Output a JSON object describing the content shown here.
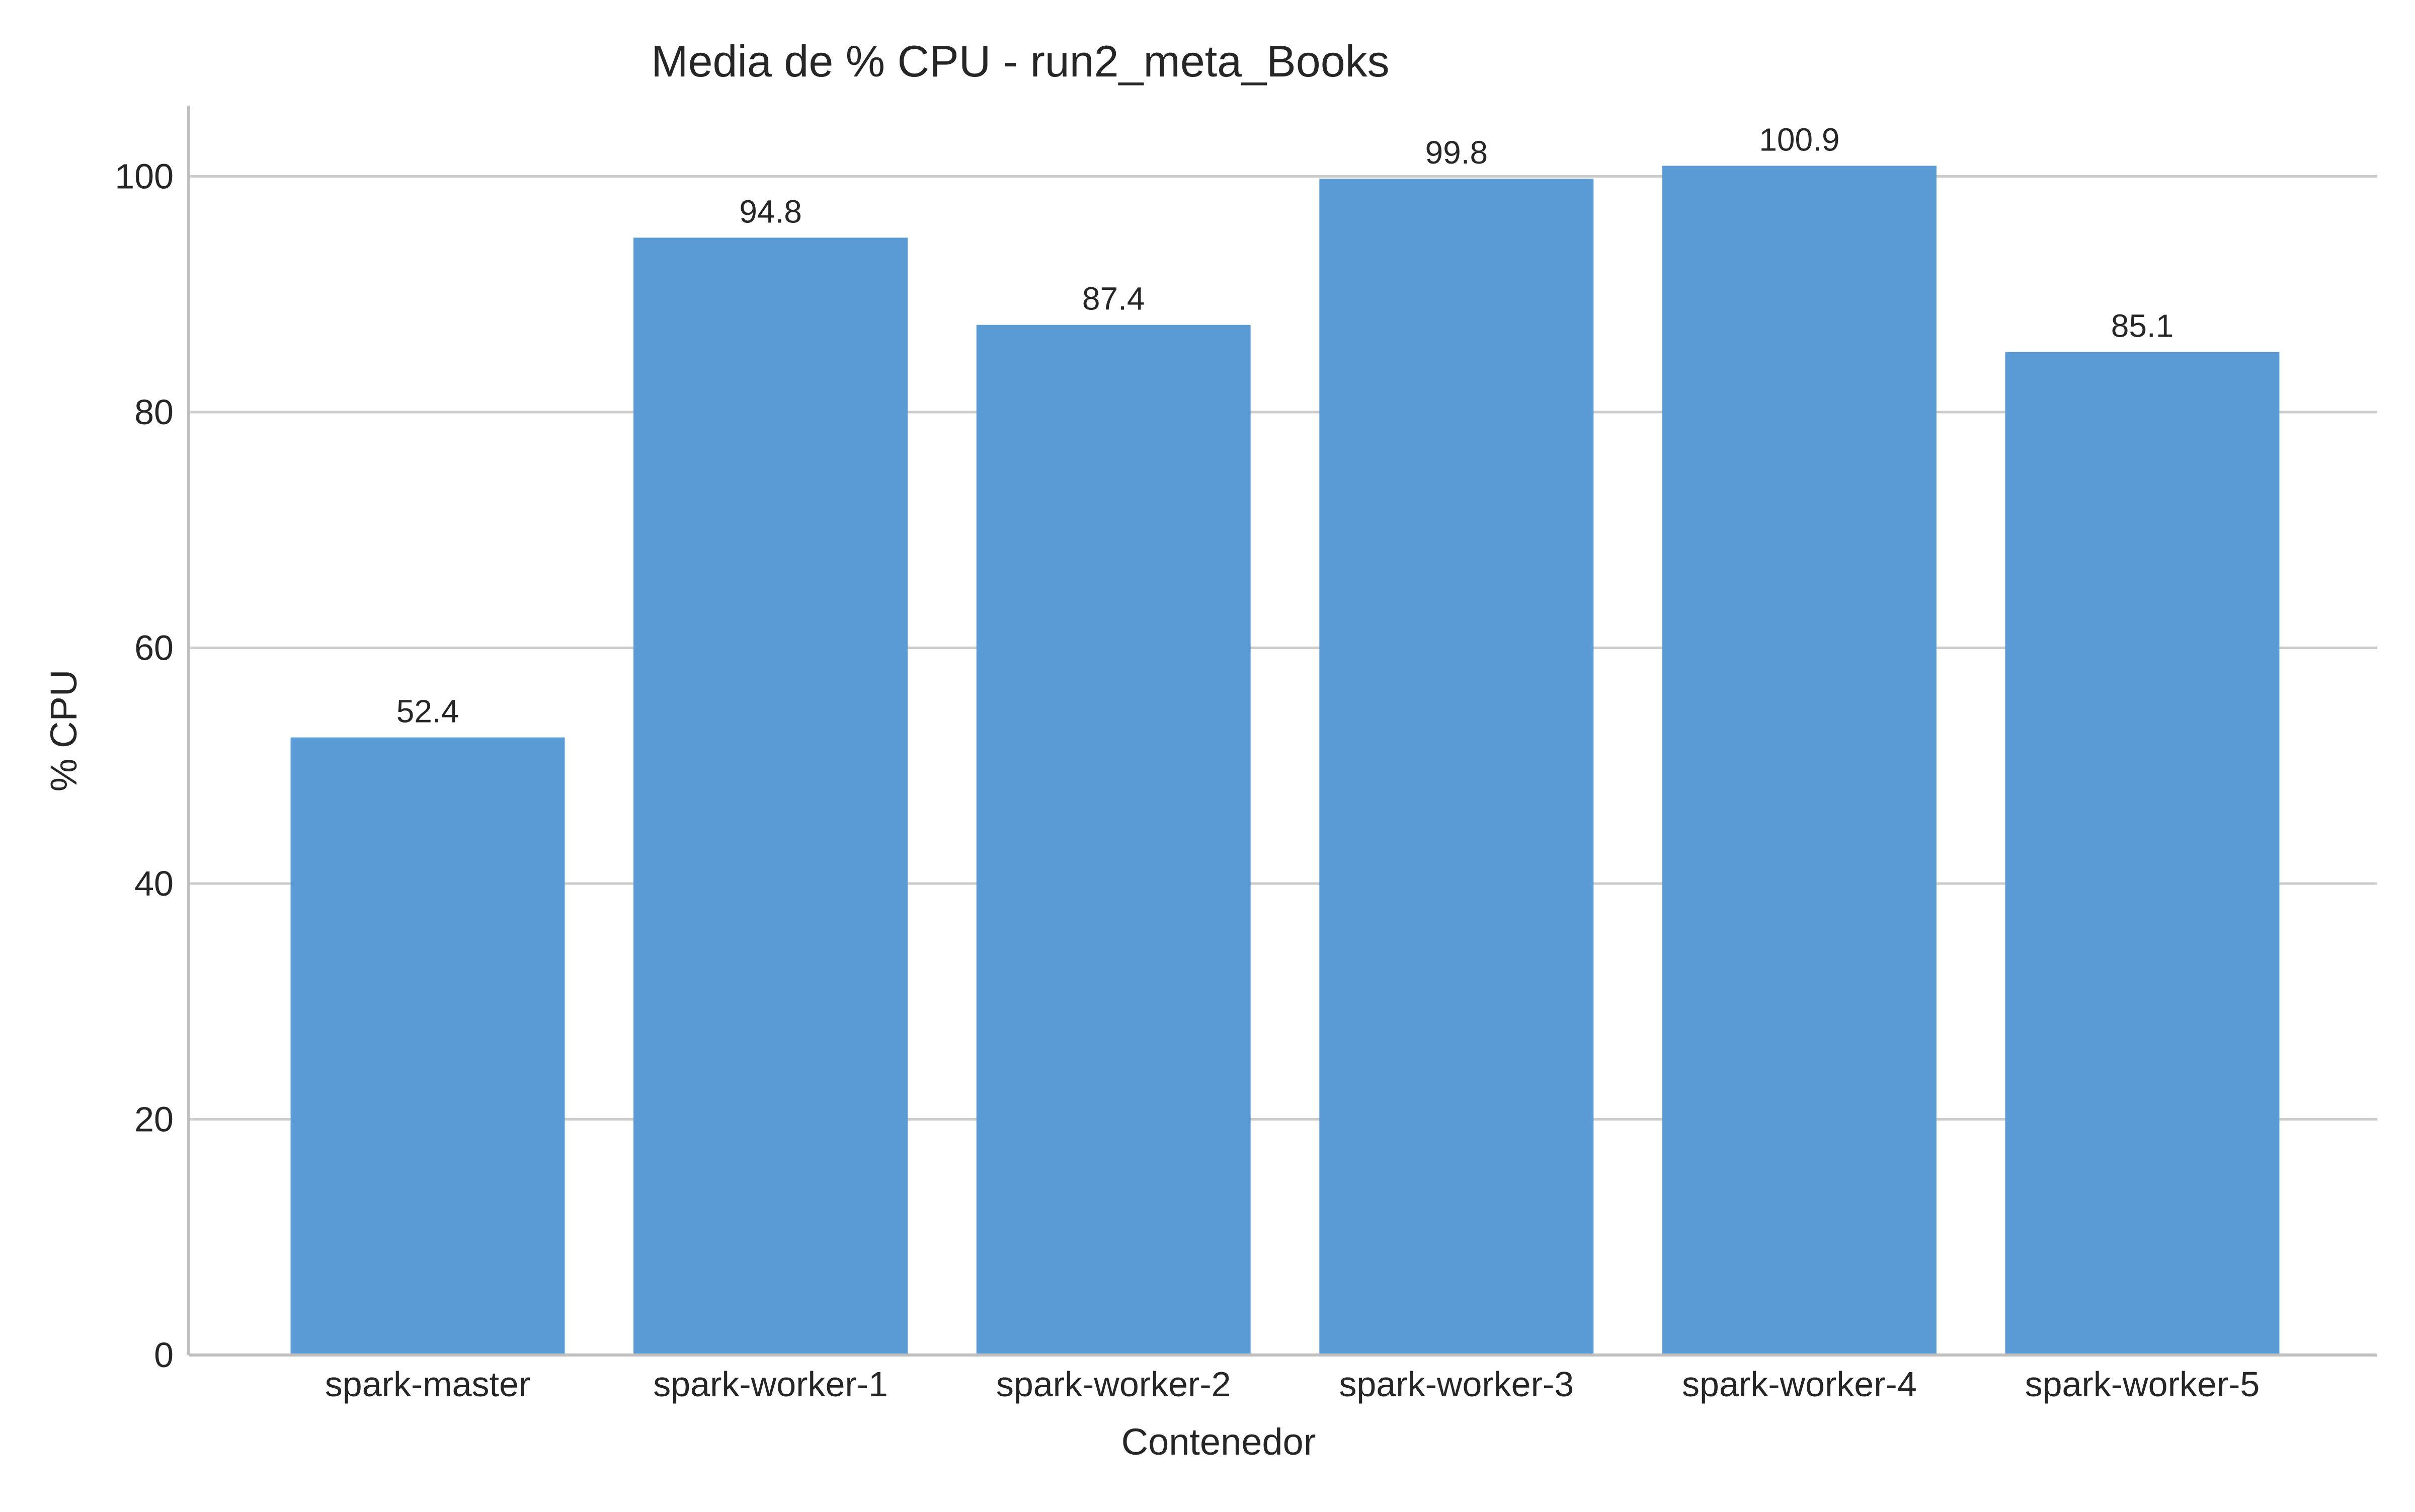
{
  "chart_data": {
    "type": "bar",
    "title": "Media de % CPU - run2_meta_Books",
    "xlabel": "Contenedor",
    "ylabel": "% CPU",
    "categories": [
      "spark-master",
      "spark-worker-1",
      "spark-worker-2",
      "spark-worker-3",
      "spark-worker-4",
      "spark-worker-5"
    ],
    "values": [
      52.4,
      94.8,
      87.4,
      99.8,
      100.9,
      85.1
    ],
    "data_labels": [
      "52.4",
      "94.8",
      "87.4",
      "99.8",
      "100.9",
      "85.1"
    ],
    "ylim": [
      0,
      106
    ],
    "yticks": [
      0,
      20,
      40,
      60,
      80,
      100
    ],
    "grid": "horizontal",
    "bar_color": "#5b9bd5",
    "grid_color": "#cccccc",
    "axis_color": "#bfbfbf"
  }
}
